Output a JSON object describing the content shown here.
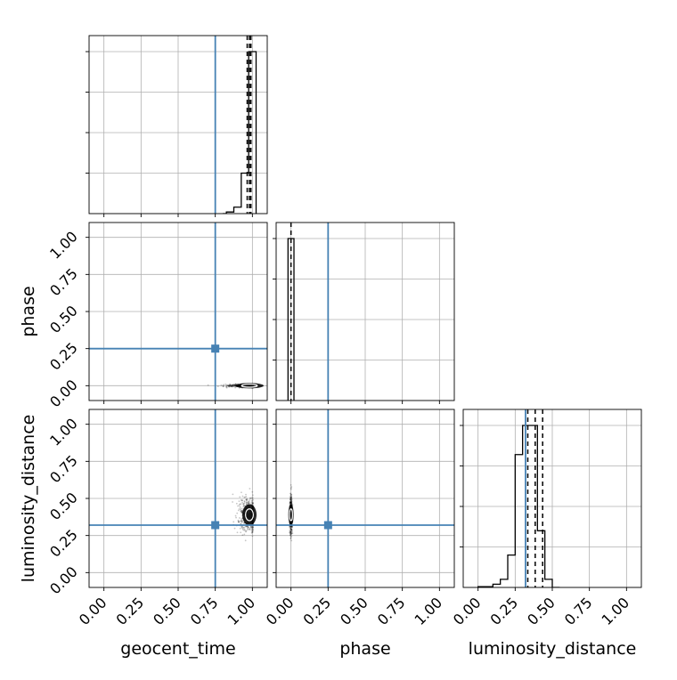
{
  "chart_data": {
    "type": "corner",
    "parameters": [
      "geocent_time",
      "phase",
      "luminosity_distance"
    ],
    "axis_labels": [
      "geocent_time",
      "phase",
      "luminosity_distance"
    ],
    "xlim": [
      -0.1,
      1.1
    ],
    "ylim": [
      -0.1,
      1.1
    ],
    "ticks": [
      0.0,
      0.25,
      0.5,
      0.75,
      1.0
    ],
    "tick_labels": [
      "0.00",
      "0.25",
      "0.50",
      "0.75",
      "1.00"
    ],
    "grid": true,
    "colors": {
      "truth": "#4682b4",
      "hist": "#000000",
      "grid": "#b0b0b0"
    },
    "truths": [
      0.75,
      0.25,
      0.32
    ],
    "quantiles": [
      [
        0.965,
        0.98,
        0.99
      ],
      [
        0.0
      ],
      [
        0.335,
        0.385,
        0.435
      ]
    ],
    "histograms": [
      {
        "param": "geocent_time",
        "bins": [
          0.8,
          0.825,
          0.85,
          0.875,
          0.9,
          0.925,
          0.95,
          0.975,
          1.0,
          1.025
        ],
        "counts": [
          0.0,
          0.01,
          0.01,
          0.04,
          0.04,
          0.25,
          0.25,
          1.0,
          1.0
        ]
      },
      {
        "param": "phase",
        "bins": [
          -0.02,
          0.02
        ],
        "counts": [
          1.0
        ]
      },
      {
        "param": "luminosity_distance",
        "bins": [
          0.0,
          0.1,
          0.15,
          0.2,
          0.25,
          0.3,
          0.35,
          0.4,
          0.45,
          0.5,
          0.55
        ],
        "counts": [
          0.005,
          0.02,
          0.05,
          0.2,
          0.82,
          1.0,
          1.0,
          0.35,
          0.05,
          0.0
        ]
      }
    ],
    "scatter_2d": [
      {
        "x": "geocent_time",
        "y": "phase",
        "center": [
          0.98,
          0.0
        ],
        "spread": [
          0.08,
          0.005
        ]
      },
      {
        "x": "geocent_time",
        "y": "luminosity_distance",
        "center": [
          0.98,
          0.39
        ],
        "spread": [
          0.04,
          0.06
        ]
      },
      {
        "x": "phase",
        "y": "luminosity_distance",
        "center": [
          0.0,
          0.39
        ],
        "spread": [
          0.004,
          0.06
        ]
      }
    ]
  }
}
